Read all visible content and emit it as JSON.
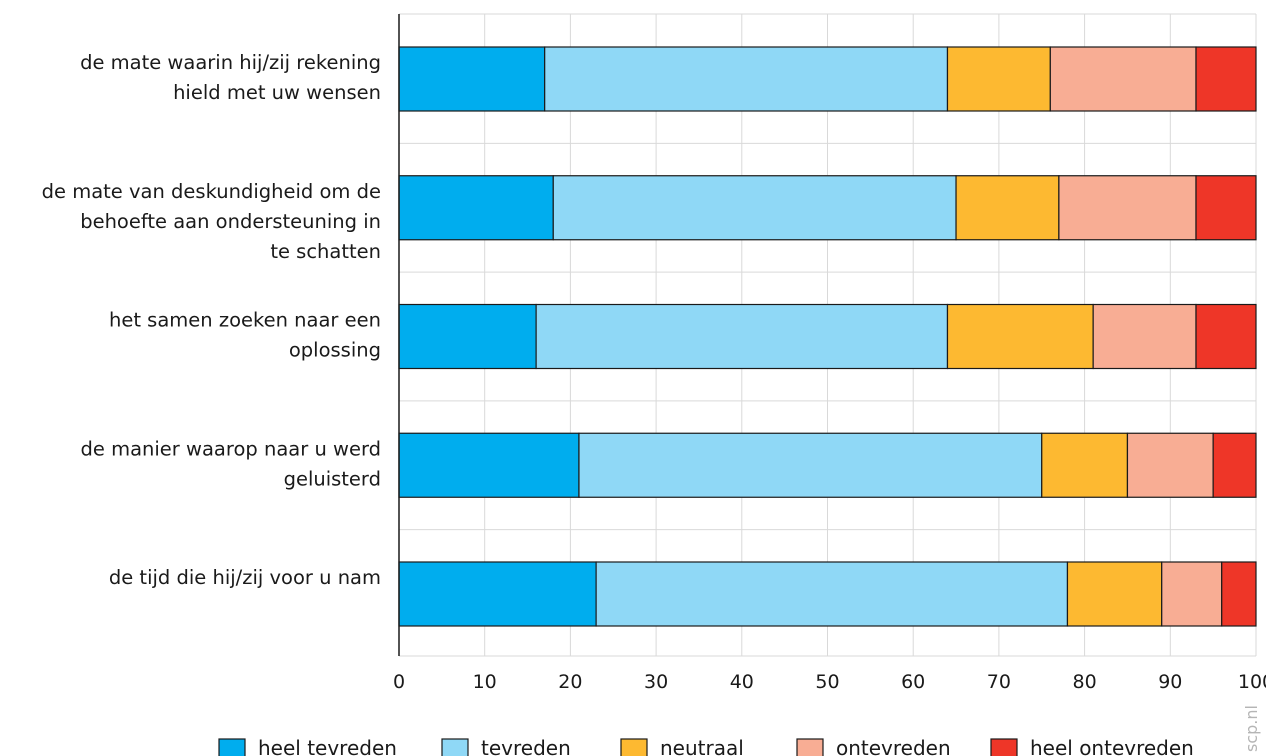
{
  "chart_data": {
    "type": "bar",
    "stacked": true,
    "orientation": "horizontal",
    "categories": [
      [
        "de mate waarin hij/zij rekening",
        "hield met uw wensen"
      ],
      [
        "de mate van deskundigheid om de",
        "behoefte aan ondersteuning in",
        "te schatten"
      ],
      [
        "het samen zoeken naar een",
        "oplossing"
      ],
      [
        "de manier waarop naar u werd",
        "geluisterd"
      ],
      [
        "de tijd die hij/zij voor u nam"
      ]
    ],
    "series": [
      {
        "name": "heel tevreden",
        "color": "#00adee",
        "values": [
          17,
          18,
          16,
          21,
          23
        ]
      },
      {
        "name": "tevreden",
        "color": "#8fd8f6",
        "values": [
          47,
          47,
          48,
          54,
          55
        ]
      },
      {
        "name": "neutraal",
        "color": "#fdb931",
        "values": [
          12,
          12,
          17,
          10,
          11
        ]
      },
      {
        "name": "ontevreden",
        "color": "#f8ad94",
        "values": [
          17,
          16,
          12,
          10,
          7
        ]
      },
      {
        "name": "heel ontevreden",
        "color": "#ee3628",
        "values": [
          7,
          7,
          7,
          5,
          4
        ]
      }
    ],
    "xlim": [
      0,
      100
    ],
    "xticks": [
      0,
      10,
      20,
      30,
      40,
      50,
      60,
      70,
      80,
      90,
      100
    ],
    "grid": true,
    "legend_position": "bottom"
  },
  "watermark": "scp.nl"
}
